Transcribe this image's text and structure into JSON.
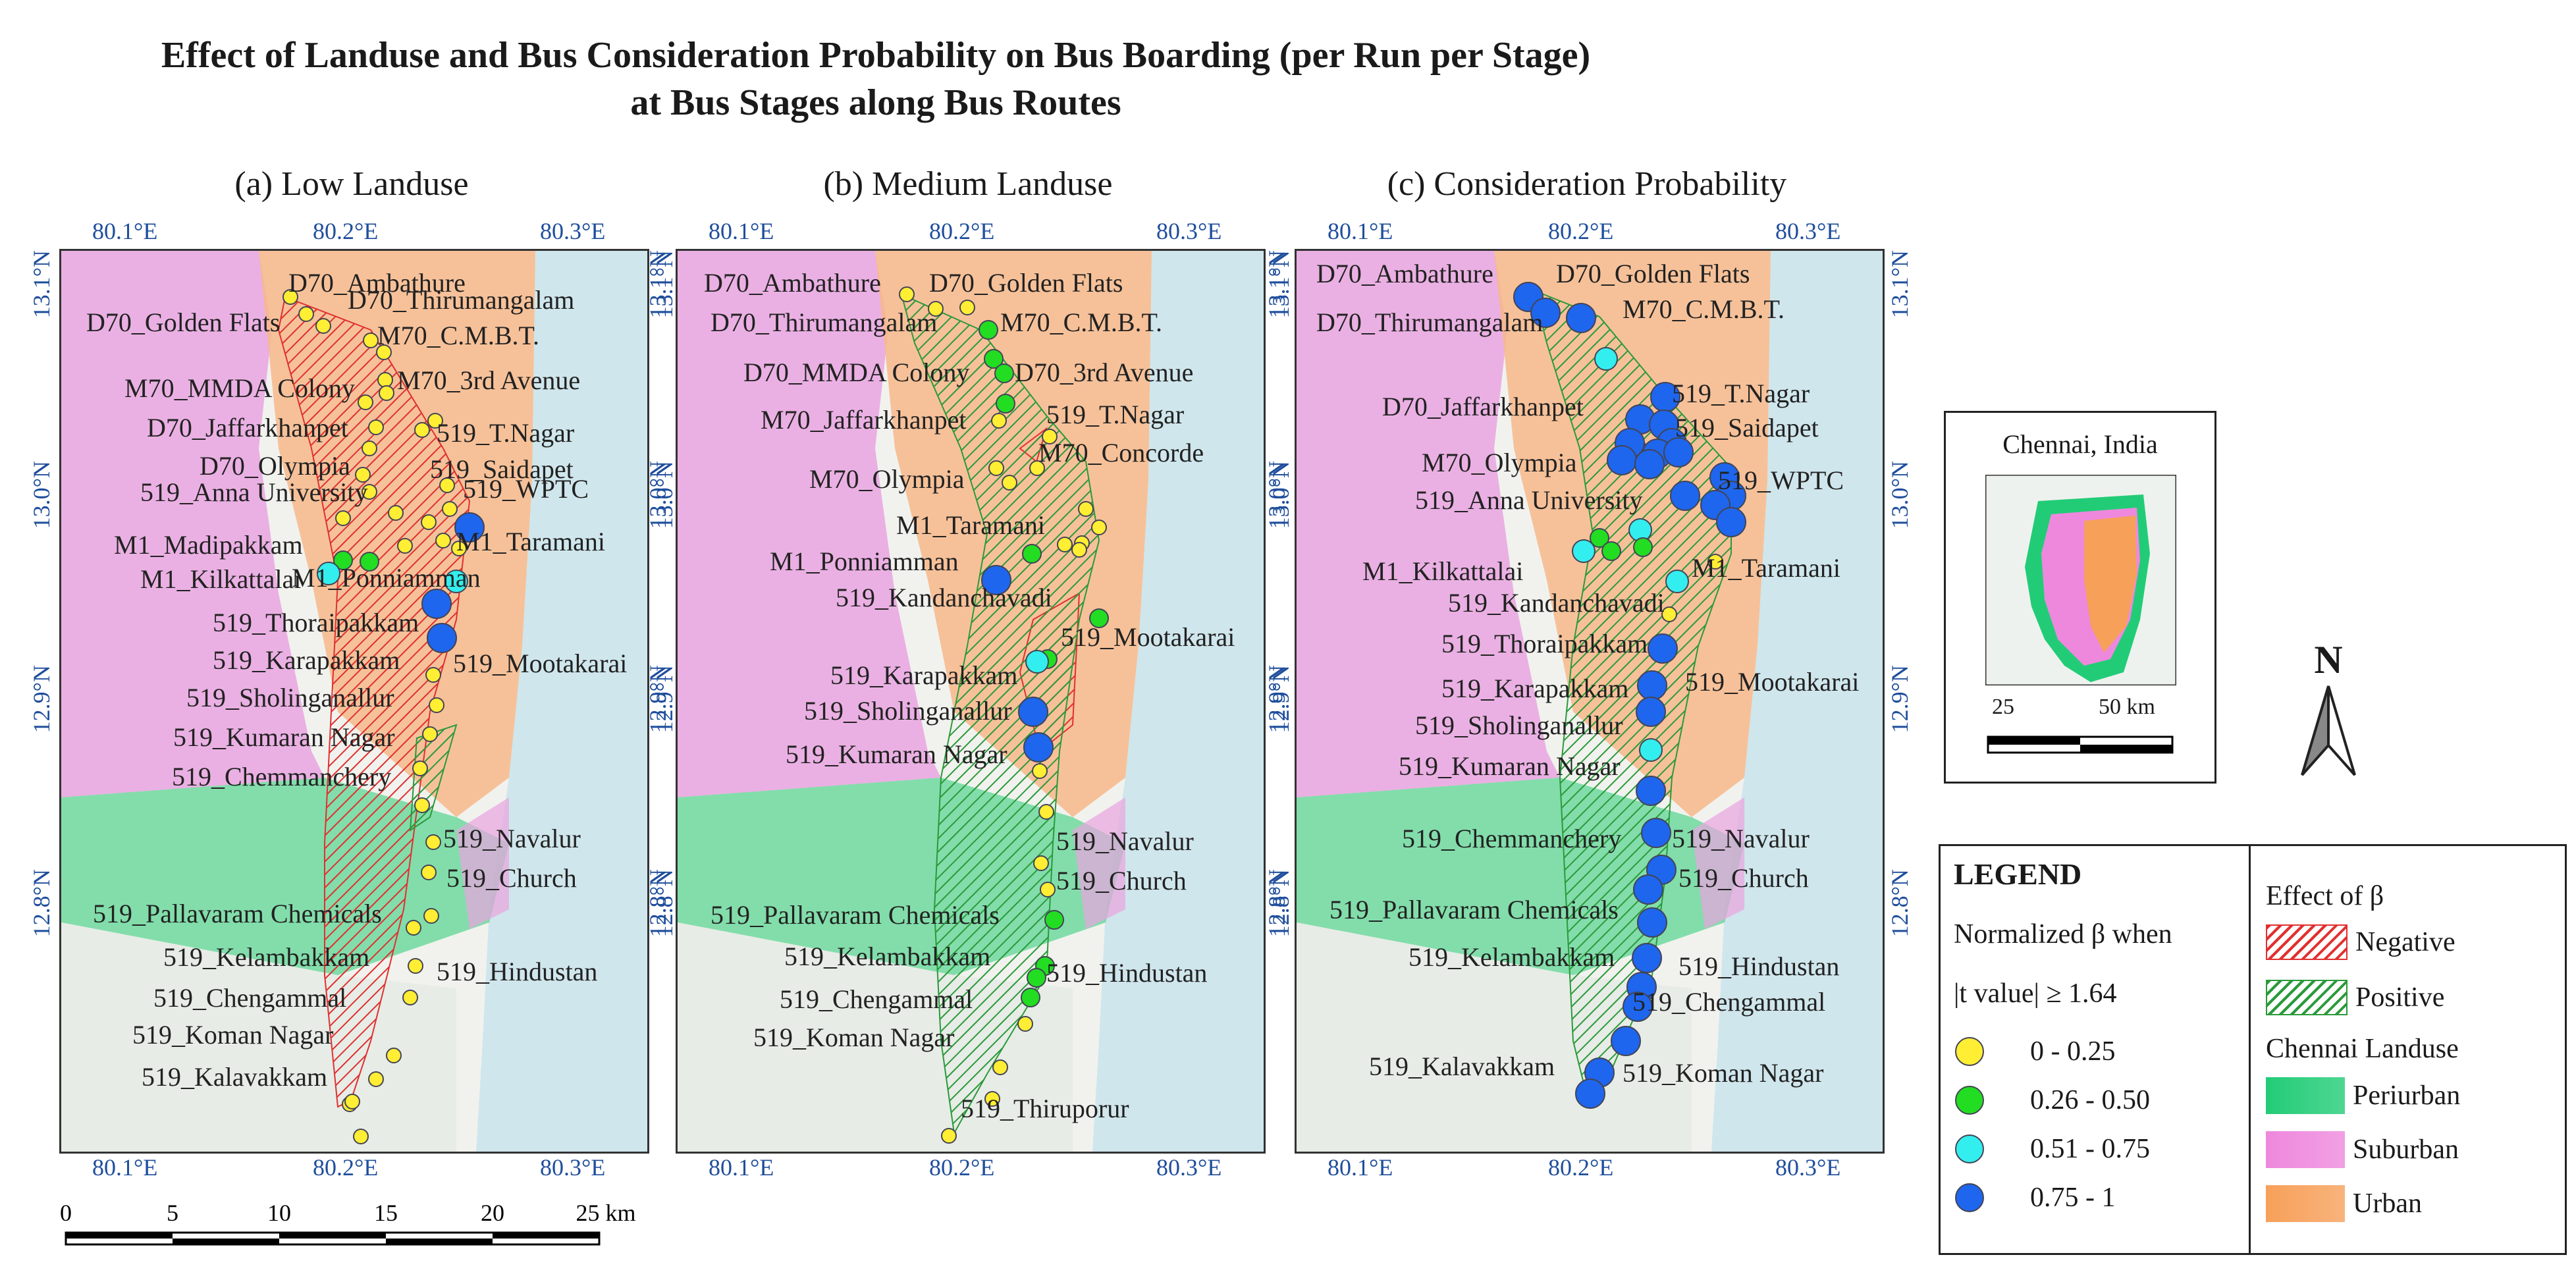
{
  "title_line1": "Effect of Landuse and Bus Consideration Probability on Bus Boarding (per Run per Stage)",
  "title_line2": "at Bus Stages along Bus Routes",
  "panels": [
    {
      "id": "low",
      "title": "(a) Low Landuse",
      "labels": [
        {
          "text": "D70_Ambathure",
          "stop": "yellow"
        },
        {
          "text": "D70_Thirumangalam",
          "stop": "yellow"
        },
        {
          "text": "D70_Golden Flats",
          "stop": "yellow"
        },
        {
          "text": "M70_C.M.B.T.",
          "stop": "yellow"
        },
        {
          "text": "M70_3rd Avenue",
          "stop": "yellow"
        },
        {
          "text": "M70_MMDA Colony",
          "stop": "yellow"
        },
        {
          "text": "D70_Jaffarkhanpet",
          "stop": "yellow"
        },
        {
          "text": "519_T.Nagar",
          "stop": "yellow"
        },
        {
          "text": "D70_Olympia",
          "stop": "yellow"
        },
        {
          "text": "519_Saidapet",
          "stop": "yellow"
        },
        {
          "text": "519_Anna University",
          "stop": "yellow"
        },
        {
          "text": "519_WPTC",
          "stop": "yellow"
        },
        {
          "text": "M1_Madipakkam",
          "stop": "yellow"
        },
        {
          "text": "M1_Taramani",
          "stop": "yellow"
        },
        {
          "text": "M1_Kilkattalai",
          "stop": "yellow"
        },
        {
          "text": "M1_Ponniamman",
          "stop": "yellow"
        },
        {
          "text": "519_Thoraipakkam",
          "stop": "yellow"
        },
        {
          "text": "519_Karapakkam",
          "stop": "yellow"
        },
        {
          "text": "519_Mootakarai",
          "stop": "yellow"
        },
        {
          "text": "519_Sholinganallur",
          "stop": "yellow"
        },
        {
          "text": "519_Kumaran Nagar",
          "stop": "yellow"
        },
        {
          "text": "519_Chemmanchery",
          "stop": "yellow"
        },
        {
          "text": "519_Navalur",
          "stop": "green"
        },
        {
          "text": "519_Church",
          "stop": "green"
        },
        {
          "text": "519_Pallavaram Chemicals",
          "stop": "blue"
        },
        {
          "text": "519_Kelambakkam",
          "stop": "cyan"
        },
        {
          "text": "519_Hindustan",
          "stop": "cyan"
        },
        {
          "text": "519_Chengammal",
          "stop": "blue"
        },
        {
          "text": "519_Koman Nagar",
          "stop": "blue"
        },
        {
          "text": "519_Kalavakkam",
          "stop": "yellow"
        }
      ]
    },
    {
      "id": "medium",
      "title": "(b) Medium Landuse",
      "labels": [
        {
          "text": "D70_Ambathure",
          "stop": "yellow"
        },
        {
          "text": "D70_Golden Flats",
          "stop": "yellow"
        },
        {
          "text": "D70_Thirumangalam",
          "stop": "yellow"
        },
        {
          "text": "M70_C.M.B.T.",
          "stop": "green"
        },
        {
          "text": "D70_MMDA Colony",
          "stop": "green"
        },
        {
          "text": "D70_3rd Avenue",
          "stop": "green"
        },
        {
          "text": "M70_Jaffarkhanpet",
          "stop": "green"
        },
        {
          "text": "519_T.Nagar",
          "stop": "yellow"
        },
        {
          "text": "M70_Concorde",
          "stop": "yellow"
        },
        {
          "text": "M70_Olympia",
          "stop": "yellow"
        },
        {
          "text": "M1_Taramani",
          "stop": "yellow"
        },
        {
          "text": "M1_Ponniamman",
          "stop": "yellow"
        },
        {
          "text": "519_Kandanchavadi",
          "stop": "yellow"
        },
        {
          "text": "519_Mootakarai",
          "stop": "yellow"
        },
        {
          "text": "519_Karapakkam",
          "stop": "yellow"
        },
        {
          "text": "519_Sholinganallur",
          "stop": "yellow"
        },
        {
          "text": "519_Kumaran Nagar",
          "stop": "yellow"
        },
        {
          "text": "519_Navalur",
          "stop": "green"
        },
        {
          "text": "519_Church",
          "stop": "blue"
        },
        {
          "text": "519_Pallavaram Chemicals",
          "stop": "green"
        },
        {
          "text": "519_Kelambakkam",
          "stop": "green"
        },
        {
          "text": "519_Hindustan",
          "stop": "cyan"
        },
        {
          "text": "519_Chengammal",
          "stop": "blue"
        },
        {
          "text": "519_Koman Nagar",
          "stop": "blue"
        },
        {
          "text": "519_Thiruporur",
          "stop": "yellow"
        }
      ]
    },
    {
      "id": "consideration",
      "title": "(c) Consideration Probability",
      "labels": [
        {
          "text": "D70_Ambathure",
          "stop": "blue"
        },
        {
          "text": "D70_Golden Flats",
          "stop": "blue"
        },
        {
          "text": "D70_Thirumangalam",
          "stop": "blue"
        },
        {
          "text": "M70_C.M.B.T.",
          "stop": "cyan"
        },
        {
          "text": "D70_Jaffarkhanpet",
          "stop": "blue"
        },
        {
          "text": "519_T.Nagar",
          "stop": "blue"
        },
        {
          "text": "519_Saidapet",
          "stop": "blue"
        },
        {
          "text": "M70_Olympia",
          "stop": "blue"
        },
        {
          "text": "519_WPTC",
          "stop": "blue"
        },
        {
          "text": "519_Anna University",
          "stop": "blue"
        },
        {
          "text": "M1_Kilkattalai",
          "stop": "blue"
        },
        {
          "text": "M1_Taramani",
          "stop": "blue"
        },
        {
          "text": "519_Kandanchavadi",
          "stop": "blue"
        },
        {
          "text": "519_Thoraipakkam",
          "stop": "blue"
        },
        {
          "text": "519_Mootakarai",
          "stop": "blue"
        },
        {
          "text": "519_Karapakkam",
          "stop": "blue"
        },
        {
          "text": "519_Sholinganallur",
          "stop": "blue"
        },
        {
          "text": "519_Kumaran Nagar",
          "stop": "blue"
        },
        {
          "text": "519_Chemmanchery",
          "stop": "blue"
        },
        {
          "text": "519_Navalur",
          "stop": "cyan"
        },
        {
          "text": "519_Church",
          "stop": "green"
        },
        {
          "text": "519_Pallavaram Chemicals",
          "stop": "cyan"
        },
        {
          "text": "519_Kelambakkam",
          "stop": "green"
        },
        {
          "text": "519_Hindustan",
          "stop": "green"
        },
        {
          "text": "519_Chengammal",
          "stop": "yellow"
        },
        {
          "text": "519_Kalavakkam",
          "stop": "cyan"
        },
        {
          "text": "519_Koman Nagar",
          "stop": "yellow"
        }
      ]
    }
  ],
  "axes": {
    "lon_ticks": [
      "80.1°E",
      "80.2°E",
      "80.3°E"
    ],
    "lat_ticks": [
      "13.1°N",
      "13.0°N",
      "12.9°N",
      "12.8°N"
    ]
  },
  "scalebar": {
    "ticks": [
      "0",
      "5",
      "10",
      "15",
      "20"
    ],
    "end_label": "25 km"
  },
  "inset": {
    "title": "Chennai, India",
    "scale_labels": [
      "25",
      "50 km"
    ]
  },
  "north_arrow": {
    "label": "N"
  },
  "legend": {
    "heading": "LEGEND",
    "subtitle_line1": "Normalized β when",
    "subtitle_line2": "|t value| ≥ 1.64",
    "classes": [
      {
        "label": "0 - 0.25",
        "color": "#ffee33"
      },
      {
        "label": "0.26 - 0.50",
        "color": "#22dd22"
      },
      {
        "label": "0.51 - 0.75",
        "color": "#33eeee"
      },
      {
        "label": "0.75 - 1",
        "color": "#1e66ee"
      }
    ],
    "effect_title": "Effect of β",
    "effects": [
      {
        "label": "Negative",
        "color": "#e03030"
      },
      {
        "label": "Positive",
        "color": "#2a9a3a"
      }
    ],
    "landuse_title": "Chennai Landuse",
    "landuse": [
      {
        "label": "Periurban",
        "color": "#22cc77"
      },
      {
        "label": "Suburban",
        "color": "#ee88dd"
      },
      {
        "label": "Urban",
        "color": "#f7a05a"
      }
    ]
  }
}
